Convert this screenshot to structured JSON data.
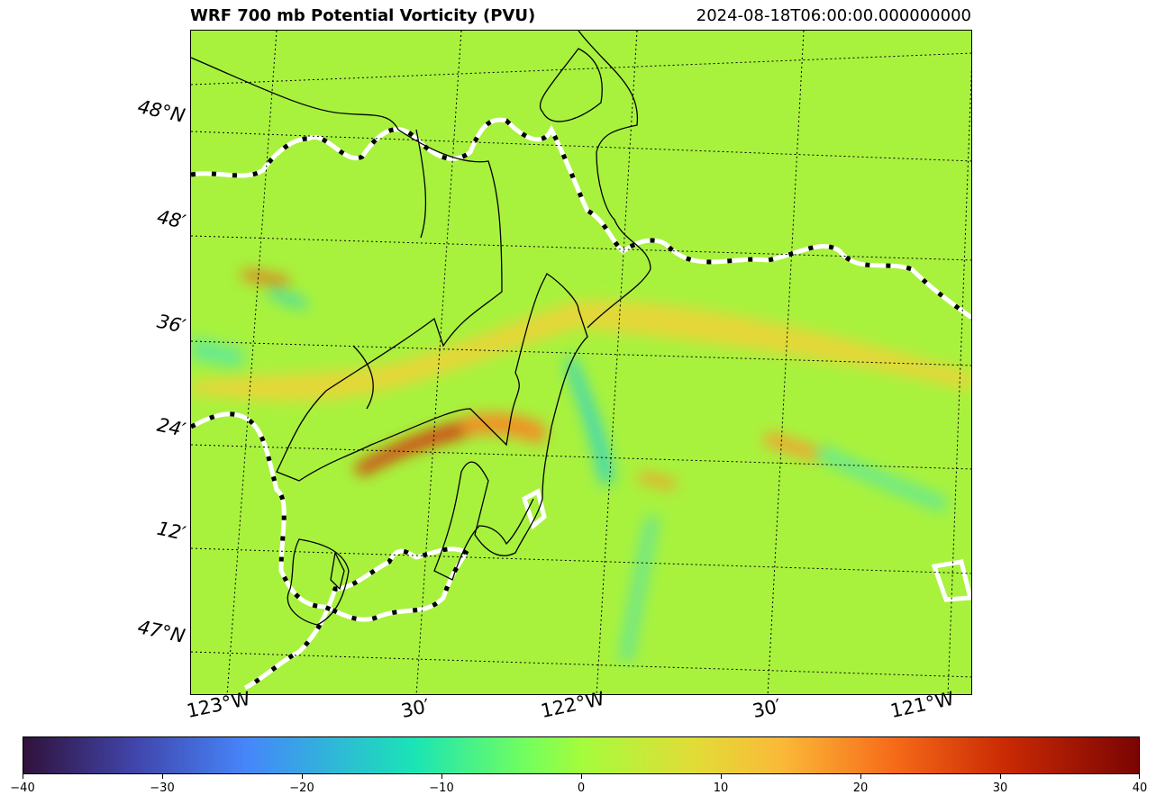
{
  "title": "WRF 700 mb Potential Vorticity (PVU)",
  "timestamp": "2024-08-18T06:00:00.000000000",
  "lat_labels": [
    "48°N",
    "48′",
    "36′",
    "24′",
    "12′",
    "47°N"
  ],
  "lon_labels": [
    "123°W",
    "30′",
    "122°W",
    "30′",
    "121°W"
  ],
  "colorbar": {
    "colormap": "turbo",
    "ticks": [
      "−40",
      "−30",
      "−20",
      "−10",
      "0",
      "10",
      "20",
      "30",
      "40"
    ],
    "min": -40,
    "max": 40
  },
  "colors": {
    "background_field": "#a8f23e",
    "high_pv": "#b31b04",
    "low_pv": "#2ad0d0",
    "border_line": "#000000",
    "coast_line": "#ffffff"
  }
}
